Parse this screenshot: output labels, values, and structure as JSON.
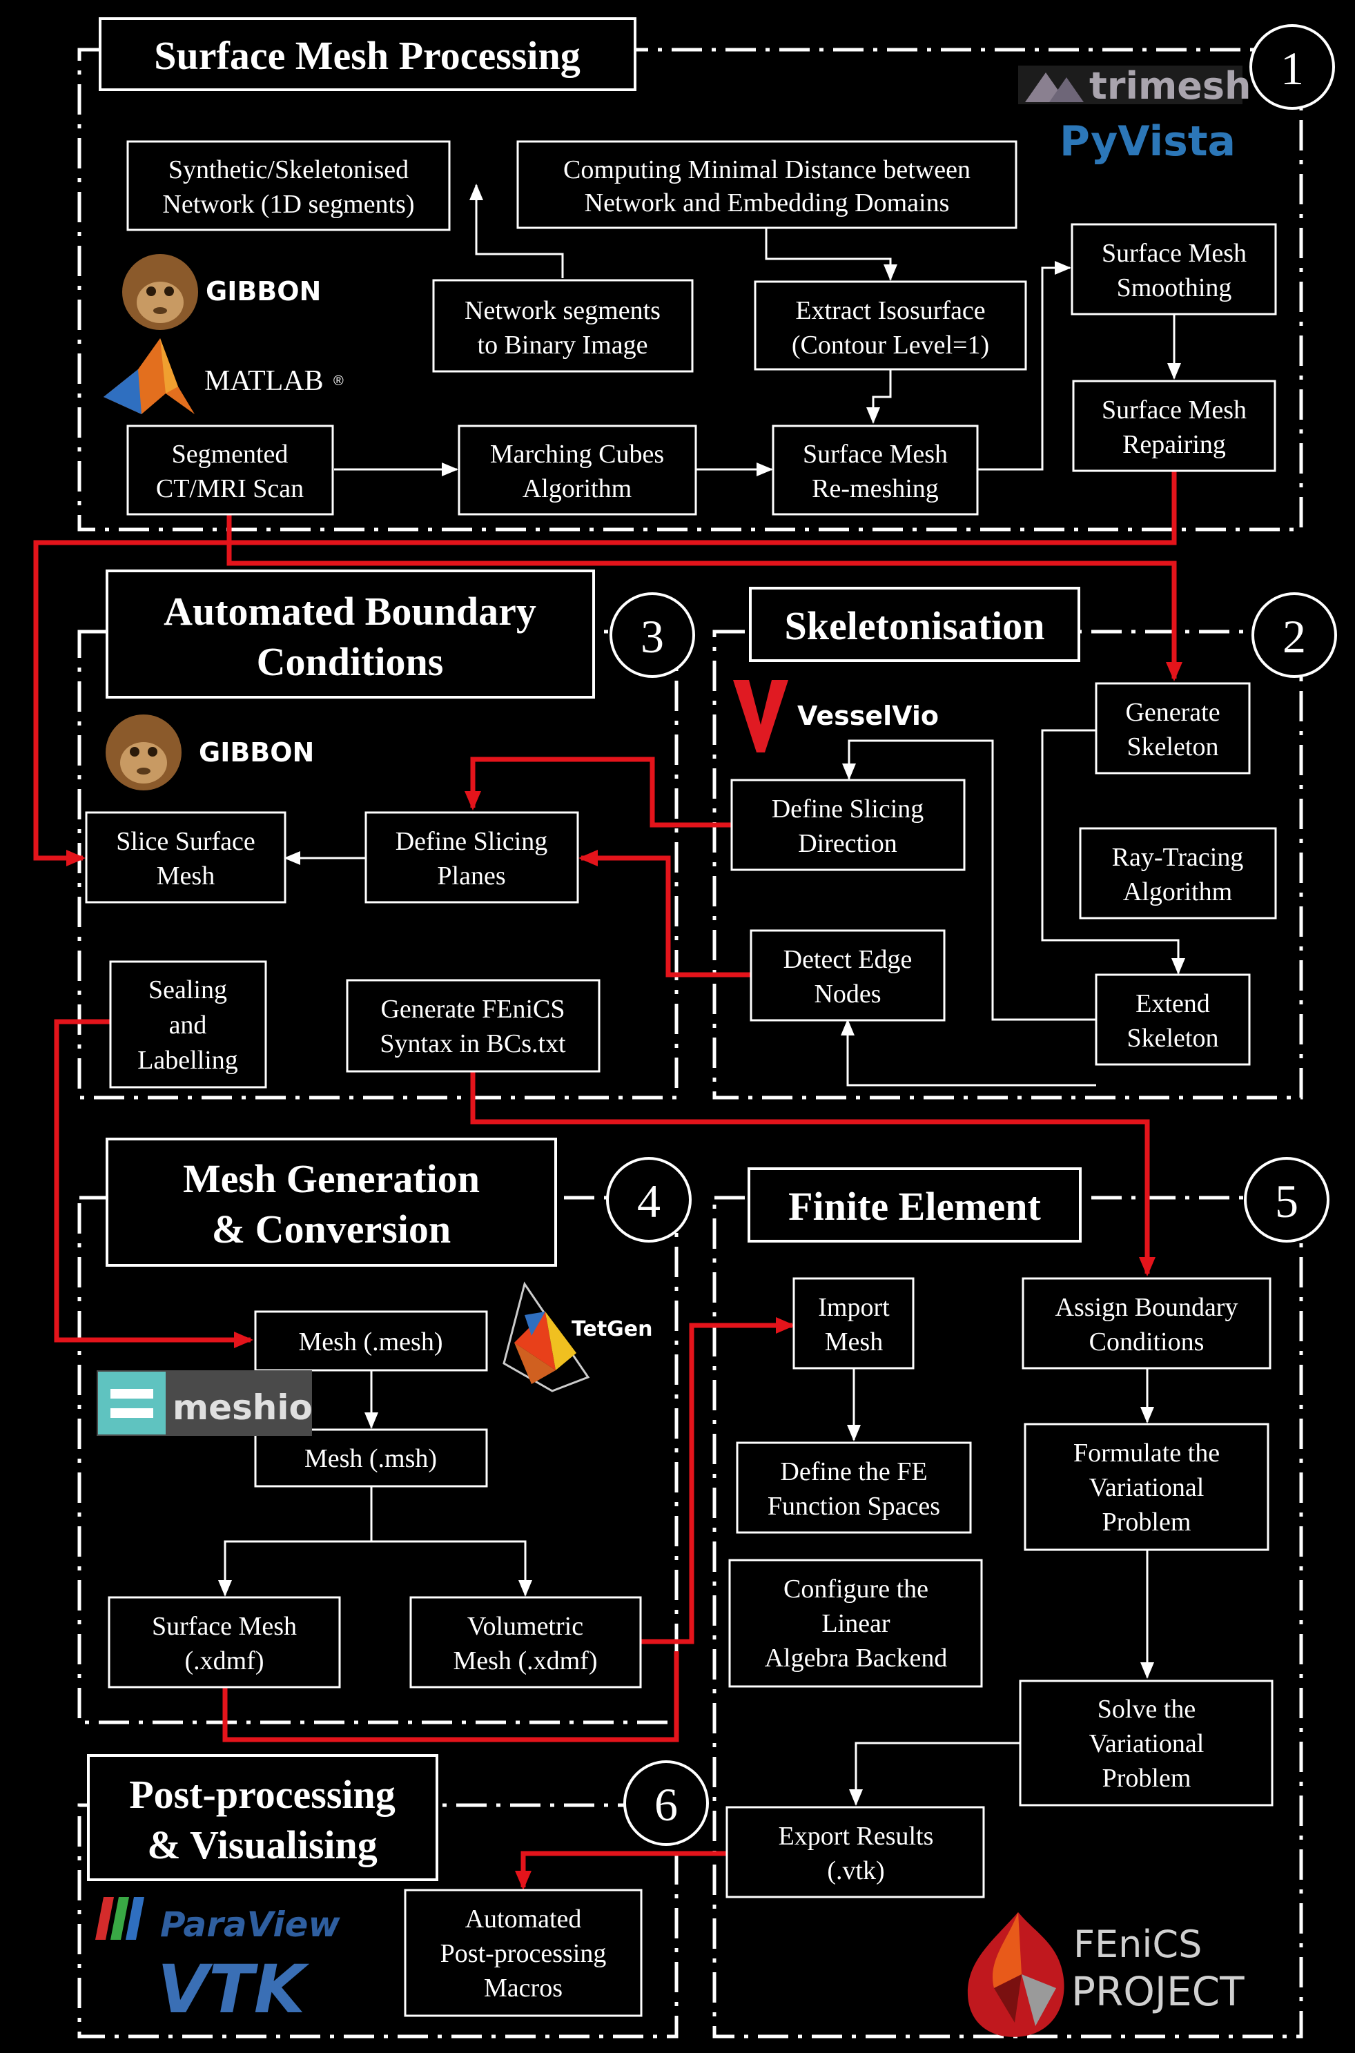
{
  "sections": {
    "s1": {
      "title": "Surface Mesh Processing",
      "number": "1"
    },
    "s2": {
      "title": "Skeletonisation",
      "number": "2"
    },
    "s3": {
      "title_line1": "Automated Boundary",
      "title_line2": "Conditions",
      "number": "3"
    },
    "s4": {
      "title_line1": "Mesh Generation",
      "title_line2": "& Conversion",
      "number": "4"
    },
    "s5": {
      "title": "Finite Element",
      "number": "5"
    },
    "s6": {
      "title_line1": "Post-processing",
      "title_line2": "& Visualising",
      "number": "6"
    }
  },
  "nodes": {
    "synthetic_network": [
      "Synthetic/Skeletonised",
      "Network (1D segments)"
    ],
    "computing_distance": [
      "Computing Minimal Distance between",
      "Network and Embedding Domains"
    ],
    "network_binary": [
      "Network segments",
      "to Binary Image"
    ],
    "extract_isosurface": [
      "Extract Isosurface",
      "(Contour Level=1)"
    ],
    "surface_smoothing": [
      "Surface Mesh",
      "Smoothing"
    ],
    "surface_repairing": [
      "Surface Mesh",
      "Repairing"
    ],
    "segmented_scan": [
      "Segmented",
      "CT/MRI Scan"
    ],
    "marching_cubes": [
      "Marching Cubes",
      "Algorithm"
    ],
    "surface_remeshing": [
      "Surface Mesh",
      "Re-meshing"
    ],
    "slice_surface": [
      "Slice Surface",
      "Mesh"
    ],
    "define_planes": [
      "Define Slicing",
      "Planes"
    ],
    "sealing": [
      "Sealing",
      "and",
      "Labelling"
    ],
    "generate_fenics": [
      "Generate FEniCS",
      "Syntax in BCs.txt"
    ],
    "define_direction": [
      "Define Slicing",
      "Direction"
    ],
    "detect_edge": [
      "Detect Edge",
      "Nodes"
    ],
    "generate_skeleton": [
      "Generate",
      "Skeleton"
    ],
    "ray_tracing": [
      "Ray-Tracing",
      "Algorithm"
    ],
    "extend_skeleton": [
      "Extend",
      "Skeleton"
    ],
    "mesh_mesh": [
      "Mesh (.mesh)"
    ],
    "mesh_msh": [
      "Mesh (.msh)"
    ],
    "surface_xdmf": [
      "Surface Mesh",
      "(.xdmf)"
    ],
    "volumetric_xdmf": [
      "Volumetric",
      "Mesh (.xdmf)"
    ],
    "import_mesh": [
      "Import",
      "Mesh"
    ],
    "fe_spaces": [
      "Define the FE",
      "Function Spaces"
    ],
    "linear_algebra": [
      "Configure the",
      "Linear",
      "Algebra Backend"
    ],
    "assign_bc": [
      "Assign Boundary",
      "Conditions"
    ],
    "formulate": [
      "Formulate the",
      "Variational",
      "Problem"
    ],
    "solve": [
      "Solve the",
      "Variational",
      "Problem"
    ],
    "export_results": [
      "Export Results",
      "(.vtk)"
    ],
    "post_macros": [
      "Automated",
      "Post-processing",
      "Macros"
    ]
  },
  "logos": {
    "trimesh": "trimesh",
    "pyvista": "PyVista",
    "gibbon": "GIBBON",
    "matlab": "MATLAB",
    "vesselvio": "VesselVio",
    "tetgen": "TetGen",
    "meshio": "meshio",
    "paraview": "ParaView",
    "vtk": "VTK",
    "fenics_line1": "FEniCS",
    "fenics_line2": "PROJECT"
  },
  "colors": {
    "flow_red": "#e4141b",
    "line_white": "#ffffff",
    "background": "#000000"
  }
}
